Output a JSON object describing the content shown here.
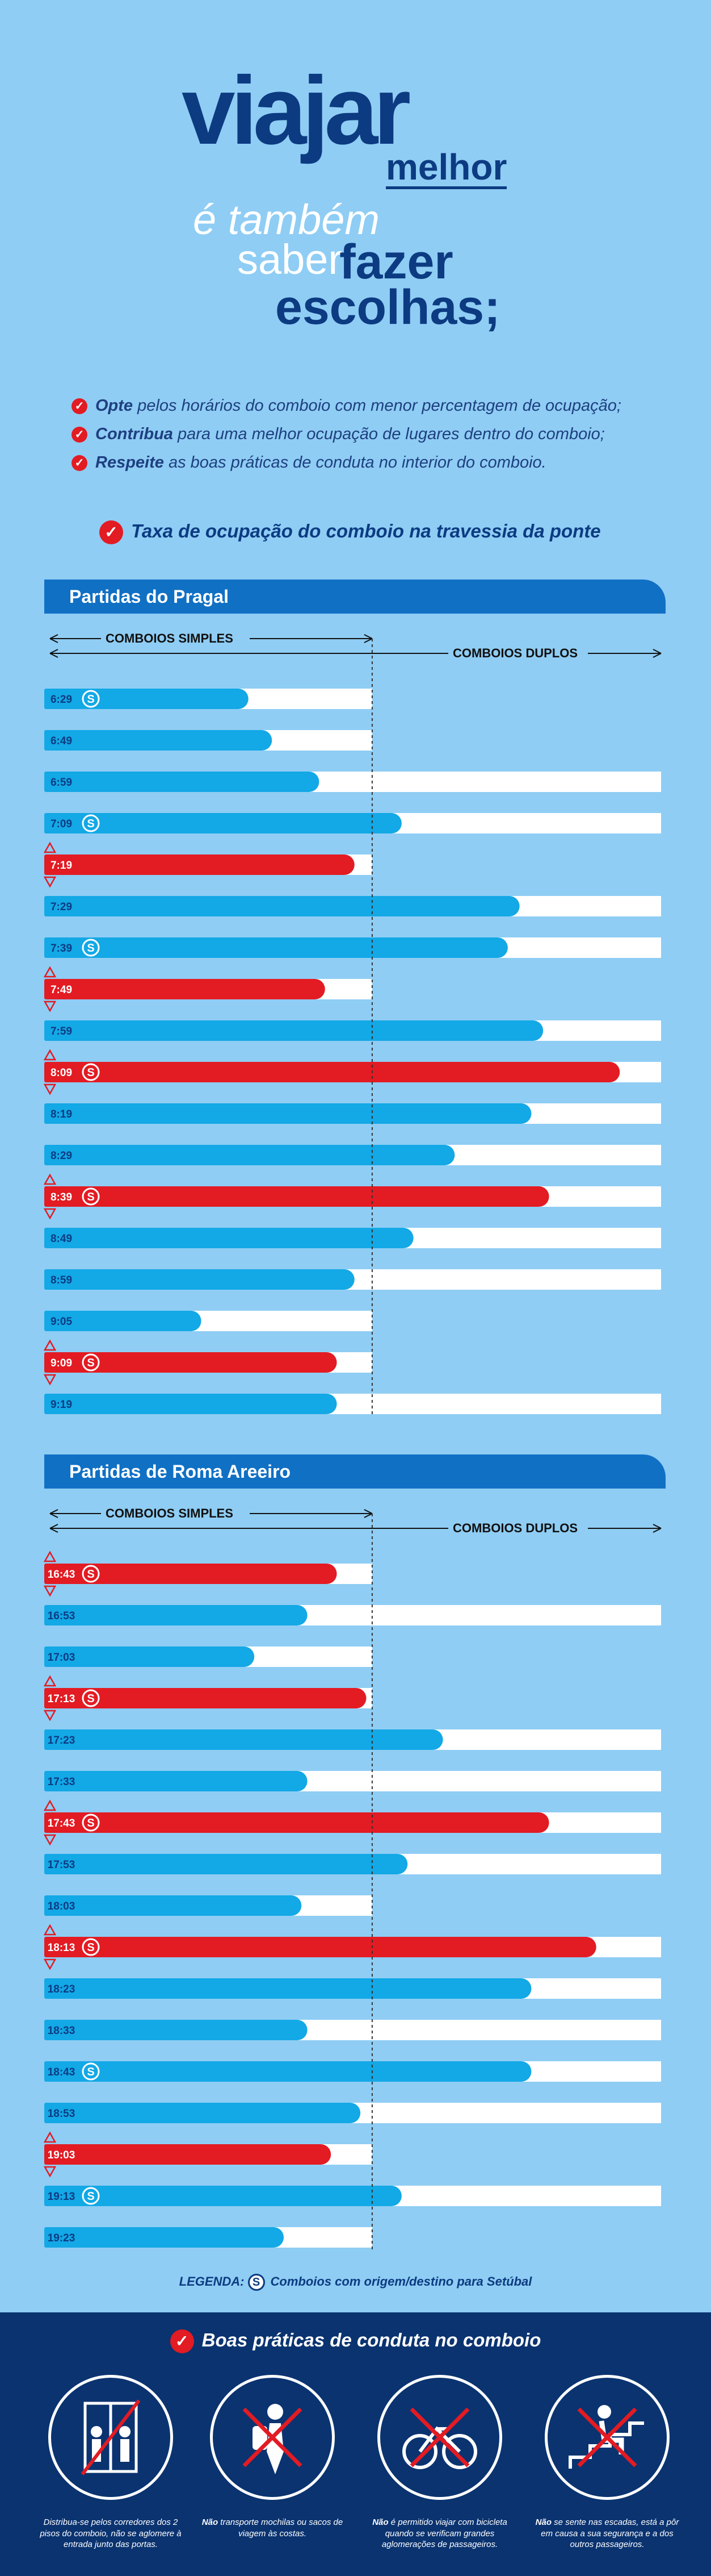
{
  "header": {
    "viajar": "viajar",
    "melhor": "melhor",
    "line2": "é também",
    "saber": "saber",
    "fazer": "fazer",
    "escolhas": "escolhas;"
  },
  "tips": [
    {
      "bold": "Opte",
      "rest": " pelos horários do comboio com menor percentagem de ocupação;"
    },
    {
      "bold": "Contribua",
      "rest": " para uma melhor ocupação de lugares dentro do comboio;"
    },
    {
      "bold": "Respeite",
      "rest": " as boas práticas de conduta no interior do comboio."
    }
  ],
  "taxa_title": "Taxa de ocupação do comboio na travessia da ponte",
  "colors": {
    "blue_bar": "#13a8e6",
    "red_bar": "#e31b23",
    "track": "#ffffff",
    "navy": "#0c3b82",
    "background": "#8fcdf4"
  },
  "chart_data": [
    {
      "type": "bar",
      "title": "Partidas do Pragal",
      "range_labels": {
        "simples": "COMBOIOS SIMPLES",
        "duplos": "COMBOIOS DUPLOS"
      },
      "unit_note": "fraction of double-train capacity",
      "simples_capacity": 0.51,
      "rows": [
        {
          "time": "6:29",
          "value": 0.3,
          "simples": true,
          "red": false,
          "setubal": true,
          "arrow": false
        },
        {
          "time": "6:49",
          "value": 0.34,
          "simples": true,
          "red": false,
          "setubal": false,
          "arrow": false
        },
        {
          "time": "6:59",
          "value": 0.42,
          "simples": false,
          "red": false,
          "setubal": false,
          "arrow": false
        },
        {
          "time": "7:09",
          "value": 0.56,
          "simples": false,
          "red": false,
          "setubal": true,
          "arrow": false
        },
        {
          "time": "7:19",
          "value": 0.48,
          "simples": true,
          "red": true,
          "setubal": false,
          "arrow": true
        },
        {
          "time": "7:29",
          "value": 0.76,
          "simples": false,
          "red": false,
          "setubal": false,
          "arrow": false
        },
        {
          "time": "7:39",
          "value": 0.74,
          "simples": false,
          "red": false,
          "setubal": true,
          "arrow": false
        },
        {
          "time": "7:49",
          "value": 0.43,
          "simples": true,
          "red": true,
          "setubal": false,
          "arrow": true
        },
        {
          "time": "7:59",
          "value": 0.8,
          "simples": false,
          "red": false,
          "setubal": false,
          "arrow": false
        },
        {
          "time": "8:09",
          "value": 0.93,
          "simples": false,
          "red": true,
          "setubal": true,
          "arrow": true
        },
        {
          "time": "8:19",
          "value": 0.78,
          "simples": false,
          "red": false,
          "setubal": false,
          "arrow": false
        },
        {
          "time": "8:29",
          "value": 0.65,
          "simples": false,
          "red": false,
          "setubal": false,
          "arrow": false
        },
        {
          "time": "8:39",
          "value": 0.81,
          "simples": false,
          "red": true,
          "setubal": true,
          "arrow": true
        },
        {
          "time": "8:49",
          "value": 0.58,
          "simples": false,
          "red": false,
          "setubal": false,
          "arrow": false
        },
        {
          "time": "8:59",
          "value": 0.48,
          "simples": false,
          "red": false,
          "setubal": false,
          "arrow": false
        },
        {
          "time": "9:05",
          "value": 0.22,
          "simples": true,
          "red": false,
          "setubal": false,
          "arrow": false
        },
        {
          "time": "9:09",
          "value": 0.45,
          "simples": true,
          "red": true,
          "setubal": true,
          "arrow": true
        },
        {
          "time": "9:19",
          "value": 0.45,
          "simples": false,
          "red": false,
          "setubal": false,
          "arrow": false
        }
      ]
    },
    {
      "type": "bar",
      "title": "Partidas de Roma Areeiro",
      "range_labels": {
        "simples": "COMBOIOS SIMPLES",
        "duplos": "COMBOIOS DUPLOS"
      },
      "unit_note": "fraction of double-train capacity",
      "simples_capacity": 0.51,
      "rows": [
        {
          "time": "16:43",
          "value": 0.45,
          "simples": true,
          "red": true,
          "setubal": true,
          "arrow": true
        },
        {
          "time": "16:53",
          "value": 0.4,
          "simples": false,
          "red": false,
          "setubal": false,
          "arrow": false
        },
        {
          "time": "17:03",
          "value": 0.31,
          "simples": true,
          "red": false,
          "setubal": false,
          "arrow": false
        },
        {
          "time": "17:13",
          "value": 0.5,
          "simples": true,
          "red": true,
          "setubal": true,
          "arrow": true
        },
        {
          "time": "17:23",
          "value": 0.63,
          "simples": false,
          "red": false,
          "setubal": false,
          "arrow": false
        },
        {
          "time": "17:33",
          "value": 0.4,
          "simples": false,
          "red": false,
          "setubal": false,
          "arrow": false
        },
        {
          "time": "17:43",
          "value": 0.81,
          "simples": false,
          "red": true,
          "setubal": true,
          "arrow": true
        },
        {
          "time": "17:53",
          "value": 0.57,
          "simples": false,
          "red": false,
          "setubal": false,
          "arrow": false
        },
        {
          "time": "18:03",
          "value": 0.39,
          "simples": true,
          "red": false,
          "setubal": false,
          "arrow": false
        },
        {
          "time": "18:13",
          "value": 0.89,
          "simples": false,
          "red": true,
          "setubal": true,
          "arrow": true
        },
        {
          "time": "18:23",
          "value": 0.78,
          "simples": false,
          "red": false,
          "setubal": false,
          "arrow": false
        },
        {
          "time": "18:33",
          "value": 0.4,
          "simples": false,
          "red": false,
          "setubal": false,
          "arrow": false
        },
        {
          "time": "18:43",
          "value": 0.78,
          "simples": false,
          "red": false,
          "setubal": true,
          "arrow": false
        },
        {
          "time": "18:53",
          "value": 0.49,
          "simples": false,
          "red": false,
          "setubal": false,
          "arrow": false
        },
        {
          "time": "19:03",
          "value": 0.44,
          "simples": true,
          "red": true,
          "setubal": false,
          "arrow": true
        },
        {
          "time": "19:13",
          "value": 0.56,
          "simples": false,
          "red": false,
          "setubal": true,
          "arrow": false
        },
        {
          "time": "19:23",
          "value": 0.36,
          "simples": true,
          "red": false,
          "setubal": false,
          "arrow": false
        }
      ]
    }
  ],
  "legend": {
    "label": "LEGENDA:",
    "s_glyph": "S",
    "text": "Comboios com origem/destino para Setúbal"
  },
  "footer": {
    "title": "Boas práticas de conduta no comboio",
    "captions": [
      {
        "bold": "",
        "text": "Distribua-se pelos corredores dos 2 pisos do comboio, não se aglomere à entrada junto das portas."
      },
      {
        "bold": "Não",
        "text": " transporte mochilas ou sacos de viagem às costas."
      },
      {
        "bold": "Não",
        "text": " é permitido viajar com bicicleta quando se verificam grandes aglomerações de passageiros."
      },
      {
        "bold": "Não",
        "text": " se sente nas escadas, está a pôr em causa a sua segurança e a dos outros passageiros."
      }
    ]
  }
}
